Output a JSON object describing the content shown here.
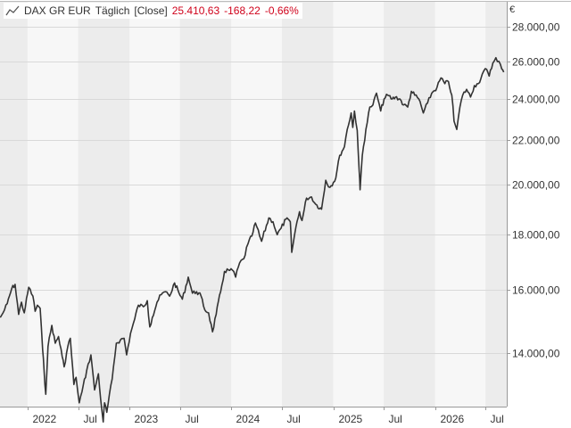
{
  "legend": {
    "icon": "line-chart-icon",
    "instrument": "DAX GR EUR",
    "interval": "Täglich",
    "mode": "[Close]",
    "last": "25.410,63",
    "change": "-168,22",
    "change_pct": "-0,66%"
  },
  "colors": {
    "line": "#333333",
    "change_negative": "#d0021b",
    "band_dark": "#ececec",
    "band_light": "#f7f7f7",
    "grid": "#d9d9d9"
  },
  "chart_data": {
    "type": "line",
    "title": "",
    "xlabel": "",
    "ylabel": "",
    "y_unit": "€",
    "y_scale": "log",
    "ylim": [
      12500,
      29500
    ],
    "xlim": [
      "2021-09-24",
      "2026-09-15"
    ],
    "grid": true,
    "yticks": [
      14000,
      16000,
      18000,
      20000,
      22000,
      24000,
      26000,
      28000
    ],
    "ytick_labels": [
      "14.000,00",
      "16.000,00",
      "18.000,00",
      "20.000,00",
      "22.000,00",
      "24.000,00",
      "26.000,00",
      "28.000,00"
    ],
    "xticks": [
      {
        "date": "2022-01-01",
        "label": "2022"
      },
      {
        "date": "2022-07-01",
        "label": "Jul"
      },
      {
        "date": "2023-01-01",
        "label": "2023"
      },
      {
        "date": "2023-07-01",
        "label": "Jul"
      },
      {
        "date": "2024-01-01",
        "label": "2024"
      },
      {
        "date": "2024-07-01",
        "label": "Jul"
      },
      {
        "date": "2025-01-01",
        "label": "2025"
      },
      {
        "date": "2025-07-01",
        "label": "Jul"
      },
      {
        "date": "2026-01-01",
        "label": "2026"
      },
      {
        "date": "2026-07-01",
        "label": "Jul"
      }
    ],
    "series": [
      {
        "points": [
          [
            "2021-09-25",
            15100
          ],
          [
            "2021-10-05",
            15250
          ],
          [
            "2021-10-20",
            15550
          ],
          [
            "2021-11-05",
            16050
          ],
          [
            "2021-11-17",
            16200
          ],
          [
            "2021-11-30",
            15200
          ],
          [
            "2021-12-10",
            15600
          ],
          [
            "2021-12-20",
            15250
          ],
          [
            "2022-01-05",
            16100
          ],
          [
            "2022-01-20",
            15800
          ],
          [
            "2022-01-28",
            15300
          ],
          [
            "2022-02-05",
            15500
          ],
          [
            "2022-02-15",
            15400
          ],
          [
            "2022-02-24",
            14100
          ],
          [
            "2022-03-01",
            13500
          ],
          [
            "2022-03-07",
            12830
          ],
          [
            "2022-03-15",
            14200
          ],
          [
            "2022-03-29",
            14850
          ],
          [
            "2022-04-10",
            14300
          ],
          [
            "2022-04-22",
            14500
          ],
          [
            "2022-05-05",
            13900
          ],
          [
            "2022-05-12",
            13600
          ],
          [
            "2022-05-25",
            14200
          ],
          [
            "2022-06-03",
            14450
          ],
          [
            "2022-06-16",
            13100
          ],
          [
            "2022-06-24",
            13300
          ],
          [
            "2022-07-05",
            12600
          ],
          [
            "2022-07-15",
            12900
          ],
          [
            "2022-08-01",
            13500
          ],
          [
            "2022-08-16",
            13950
          ],
          [
            "2022-08-29",
            12950
          ],
          [
            "2022-09-12",
            13400
          ],
          [
            "2022-09-20",
            12700
          ],
          [
            "2022-09-29",
            12100
          ],
          [
            "2022-10-04",
            12600
          ],
          [
            "2022-10-12",
            12350
          ],
          [
            "2022-10-31",
            13250
          ],
          [
            "2022-11-15",
            14300
          ],
          [
            "2022-11-30",
            14400
          ],
          [
            "2022-12-13",
            14450
          ],
          [
            "2022-12-22",
            13950
          ],
          [
            "2023-01-05",
            14600
          ],
          [
            "2023-01-20",
            15050
          ],
          [
            "2023-02-02",
            15500
          ],
          [
            "2023-02-20",
            15450
          ],
          [
            "2023-03-06",
            15650
          ],
          [
            "2023-03-15",
            14800
          ],
          [
            "2023-03-24",
            15100
          ],
          [
            "2023-04-10",
            15600
          ],
          [
            "2023-04-25",
            15850
          ],
          [
            "2023-05-10",
            15950
          ],
          [
            "2023-05-25",
            15800
          ],
          [
            "2023-06-12",
            16250
          ],
          [
            "2023-06-28",
            15900
          ],
          [
            "2023-07-10",
            15700
          ],
          [
            "2023-07-31",
            16450
          ],
          [
            "2023-08-15",
            15900
          ],
          [
            "2023-08-30",
            15950
          ],
          [
            "2023-09-15",
            15800
          ],
          [
            "2023-09-28",
            15350
          ],
          [
            "2023-10-12",
            15250
          ],
          [
            "2023-10-26",
            14650
          ],
          [
            "2023-11-08",
            15200
          ],
          [
            "2023-11-24",
            15950
          ],
          [
            "2023-12-08",
            16650
          ],
          [
            "2023-12-22",
            16700
          ],
          [
            "2024-01-10",
            16650
          ],
          [
            "2024-01-17",
            16450
          ],
          [
            "2024-01-31",
            16950
          ],
          [
            "2024-02-15",
            17100
          ],
          [
            "2024-03-01",
            17650
          ],
          [
            "2024-03-15",
            17950
          ],
          [
            "2024-03-28",
            18450
          ],
          [
            "2024-04-12",
            17950
          ],
          [
            "2024-04-19",
            17750
          ],
          [
            "2024-05-15",
            18650
          ],
          [
            "2024-05-30",
            18500
          ],
          [
            "2024-06-14",
            18000
          ],
          [
            "2024-06-28",
            18250
          ],
          [
            "2024-07-15",
            18600
          ],
          [
            "2024-07-31",
            18500
          ],
          [
            "2024-08-05",
            17340
          ],
          [
            "2024-08-20",
            18300
          ],
          [
            "2024-09-02",
            18900
          ],
          [
            "2024-09-11",
            18550
          ],
          [
            "2024-09-27",
            19450
          ],
          [
            "2024-10-15",
            19500
          ],
          [
            "2024-10-30",
            19200
          ],
          [
            "2024-11-20",
            19000
          ],
          [
            "2024-12-05",
            20200
          ],
          [
            "2024-12-20",
            19900
          ],
          [
            "2025-01-10",
            20300
          ],
          [
            "2025-01-24",
            21300
          ],
          [
            "2025-02-10",
            21700
          ],
          [
            "2025-02-20",
            22500
          ],
          [
            "2025-03-06",
            23300
          ],
          [
            "2025-03-12",
            22600
          ],
          [
            "2025-03-18",
            23400
          ],
          [
            "2025-03-28",
            22450
          ],
          [
            "2025-04-04",
            20600
          ],
          [
            "2025-04-07",
            19800
          ],
          [
            "2025-04-15",
            21300
          ],
          [
            "2025-04-28",
            22500
          ],
          [
            "2025-05-12",
            23600
          ],
          [
            "2025-05-23",
            23700
          ],
          [
            "2025-06-05",
            24300
          ],
          [
            "2025-06-20",
            23400
          ],
          [
            "2025-07-02",
            24000
          ],
          [
            "2025-07-15",
            24200
          ],
          [
            "2025-07-31",
            24000
          ],
          [
            "2025-08-12",
            24100
          ],
          [
            "2025-08-28",
            24000
          ],
          [
            "2025-09-10",
            23700
          ],
          [
            "2025-09-25",
            23600
          ],
          [
            "2025-10-08",
            24400
          ],
          [
            "2025-10-20",
            24200
          ],
          [
            "2025-11-04",
            24000
          ],
          [
            "2025-11-20",
            23300
          ],
          [
            "2025-12-05",
            23800
          ],
          [
            "2025-12-20",
            24300
          ],
          [
            "2026-01-08",
            24600
          ],
          [
            "2026-01-22",
            25100
          ],
          [
            "2026-02-05",
            24800
          ],
          [
            "2026-02-18",
            24900
          ],
          [
            "2026-03-02",
            24200
          ],
          [
            "2026-03-10",
            22900
          ],
          [
            "2026-03-20",
            22500
          ],
          [
            "2026-03-31",
            23600
          ],
          [
            "2026-04-10",
            24200
          ],
          [
            "2026-04-24",
            24500
          ],
          [
            "2026-05-08",
            24100
          ],
          [
            "2026-05-22",
            24700
          ],
          [
            "2026-06-05",
            24800
          ],
          [
            "2026-06-19",
            25300
          ],
          [
            "2026-06-30",
            25600
          ],
          [
            "2026-07-14",
            25200
          ],
          [
            "2026-07-27",
            25900
          ],
          [
            "2026-08-07",
            26200
          ],
          [
            "2026-08-18",
            26000
          ],
          [
            "2026-08-28",
            25579
          ],
          [
            "2026-09-04",
            25411
          ]
        ]
      }
    ]
  }
}
